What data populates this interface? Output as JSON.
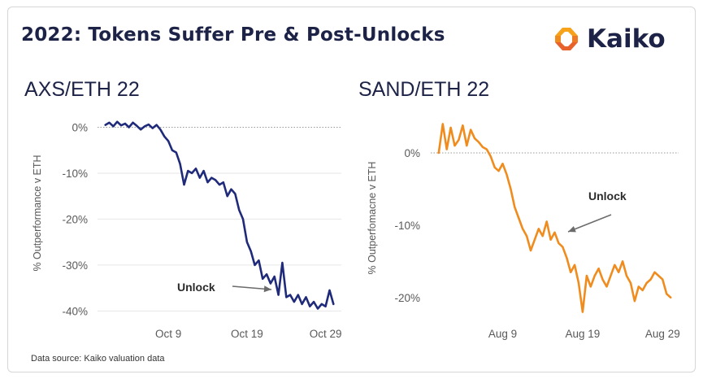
{
  "title": "2022: Tokens Suffer Pre & Post-Unlocks",
  "brand": {
    "name": "Kaiko",
    "colors": [
      "#f7a21b",
      "#e8632b"
    ]
  },
  "source": "Data source: Kaiko valuation data",
  "chart_data": [
    {
      "type": "line",
      "title": "AXS/ETH 22",
      "ylabel": "% Outperformance v ETH",
      "xlabel": "",
      "color": "#1f2a7a",
      "ylim": [
        -41,
        1.5
      ],
      "yticks": [
        0,
        -10,
        -20,
        -30,
        -40
      ],
      "ytick_labels": [
        "0%",
        "-10%",
        "-20%",
        "-30%",
        "-40%"
      ],
      "xticks": [
        "Oct 9",
        "Oct 19",
        "Oct 29"
      ],
      "xtick_pos": [
        9,
        19,
        29
      ],
      "xlim": [
        0,
        31
      ],
      "grid": true,
      "reference_line": 0,
      "annotation": {
        "text": "Unlock"
      },
      "series": [
        {
          "x": [
            1,
            1.5,
            2,
            2.5,
            3,
            3.5,
            4,
            4.5,
            5,
            5.5,
            6,
            6.5,
            7,
            7.5,
            8,
            8.5,
            9,
            9.5,
            10,
            10.5,
            11,
            11.5,
            12,
            12.5,
            13,
            13.5,
            14,
            14.5,
            15,
            15.5,
            16,
            16.5,
            17,
            17.5,
            18,
            18.5,
            19,
            19.5,
            20,
            20.5,
            21,
            21.5,
            22,
            22.5,
            23,
            23.5,
            24,
            24.5,
            25,
            25.5,
            26,
            26.5,
            27,
            27.5,
            28,
            28.5,
            29,
            29.5,
            30
          ],
          "y": [
            0.5,
            1.0,
            0.2,
            1.2,
            0.4,
            0.8,
            0.0,
            1.0,
            0.3,
            -0.5,
            0.2,
            0.6,
            -0.2,
            0.5,
            -0.5,
            -2.0,
            -3.0,
            -5.0,
            -5.5,
            -8.0,
            -12.5,
            -9.5,
            -10.0,
            -9.0,
            -11.0,
            -9.5,
            -12.0,
            -11.0,
            -11.5,
            -12.5,
            -12.0,
            -15.0,
            -13.5,
            -14.5,
            -18.0,
            -20.0,
            -25.0,
            -27.0,
            -30.0,
            -29.0,
            -33.0,
            -32.0,
            -34.0,
            -32.5,
            -36.5,
            -29.5,
            -37.0,
            -36.5,
            -38.0,
            -36.5,
            -38.5,
            -37.0,
            -39.0,
            -38.0,
            -39.5,
            -38.5,
            -39.0,
            -35.5,
            -38.5
          ]
        }
      ]
    },
    {
      "type": "line",
      "title": "SAND/ETH 22",
      "ylabel": "% Outperfomacne v ETH",
      "xlabel": "",
      "color": "#f08c1e",
      "ylim": [
        -22.5,
        4.5
      ],
      "yticks": [
        0,
        -10,
        -20
      ],
      "ytick_labels": [
        "0%",
        "-10%",
        "-20%"
      ],
      "xticks": [
        "Aug 9",
        "Aug 19",
        "Aug 29"
      ],
      "xtick_pos": [
        9,
        19,
        29
      ],
      "xlim": [
        0,
        31
      ],
      "grid": false,
      "reference_line": 0,
      "annotation": {
        "text": "Unlock"
      },
      "series": [
        {
          "x": [
            1,
            1.5,
            2,
            2.5,
            3,
            3.5,
            4,
            4.5,
            5,
            5.5,
            6,
            6.5,
            7,
            7.5,
            8,
            8.5,
            9,
            9.5,
            10,
            10.5,
            11,
            11.5,
            12,
            12.5,
            13,
            13.5,
            14,
            14.5,
            15,
            15.5,
            16,
            16.5,
            17,
            17.5,
            18,
            18.5,
            19,
            19.5,
            20,
            20.5,
            21,
            21.5,
            22,
            22.5,
            23,
            23.5,
            24,
            24.5,
            25,
            25.5,
            26,
            26.5,
            27,
            27.5,
            28,
            28.5,
            29,
            29.5,
            30
          ],
          "y": [
            0,
            4.0,
            0.5,
            3.5,
            1.0,
            1.8,
            3.8,
            1.0,
            3.2,
            2.0,
            1.5,
            0.8,
            0.5,
            -0.5,
            -2.0,
            -2.5,
            -1.5,
            -3.0,
            -5.0,
            -7.5,
            -9.0,
            -10.5,
            -11.5,
            -13.5,
            -12.0,
            -10.5,
            -11.5,
            -9.5,
            -12.0,
            -11.0,
            -12.5,
            -13.0,
            -14.5,
            -16.5,
            -15.5,
            -18.0,
            -22.0,
            -17.0,
            -18.5,
            -17.0,
            -16.0,
            -17.5,
            -18.5,
            -17.0,
            -15.5,
            -16.5,
            -15.0,
            -17.0,
            -18.0,
            -20.5,
            -18.5,
            -19.0,
            -18.0,
            -17.5,
            -16.5,
            -17.0,
            -17.5,
            -19.5,
            -20.0
          ]
        }
      ]
    }
  ]
}
